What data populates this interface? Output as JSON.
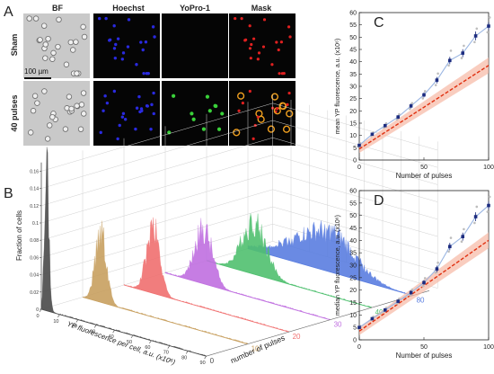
{
  "panel_a": {
    "label": "A",
    "columns": [
      "BF",
      "Hoechst",
      "YoPro-1",
      "Mask"
    ],
    "rows": [
      "Sham",
      "40 pulses"
    ],
    "scale_bar": "100 µm",
    "colors": {
      "bf": "#c9c9c9",
      "hoechst": "#2a2ae0",
      "yopro": "#3ad23a",
      "mask_red": "#e02020",
      "mask_orange": "#f0a020",
      "dark": "#050505"
    }
  },
  "panel_b": {
    "label": "B",
    "ylabel": "Fraction of cells",
    "xlabel": "YP fluorescence per cell, a.u. (x10⁶)",
    "zlabel": "number of pulses"
  },
  "panel_c": {
    "label": "C"
  },
  "panel_d": {
    "label": "D"
  },
  "chart_data": [
    {
      "type": "area",
      "panel": "B",
      "ylabel": "Fraction of cells",
      "xlabel": "YP fluorescence per cell, a.u. (x10⁶)",
      "zlabel": "number of pulses",
      "x_ticks": [
        0,
        10,
        20,
        30,
        40,
        50,
        60,
        70,
        80,
        90
      ],
      "y_ticks": [
        0,
        0.02,
        0.04,
        0.06,
        0.08,
        0.1,
        0.12,
        0.14,
        0.16
      ],
      "z_ticks": [
        0,
        10,
        20,
        30,
        40,
        80
      ],
      "series": [
        {
          "pulses": 0,
          "color": "#4a4a4a",
          "peak_x": 3,
          "peak_fraction": 0.16,
          "spread": 1.2
        },
        {
          "pulses": 10,
          "color": "#c8a060",
          "peak_x": 10,
          "peak_fraction": 0.085,
          "spread": 3.0
        },
        {
          "pulses": 20,
          "color": "#f07070",
          "peak_x": 16,
          "peak_fraction": 0.075,
          "spread": 3.6
        },
        {
          "pulses": 30,
          "color": "#c070e0",
          "peak_x": 21,
          "peak_fraction": 0.062,
          "spread": 4.8
        },
        {
          "pulses": 40,
          "color": "#50c070",
          "peak_x": 26,
          "peak_fraction": 0.06,
          "spread": 6.5
        },
        {
          "pulses": 80,
          "color": "#5a7ee0",
          "peak_x": 45,
          "peak_fraction": 0.045,
          "spread": 13
        }
      ]
    },
    {
      "type": "scatter",
      "panel": "C",
      "xlabel": "Number of pulses",
      "ylabel": "mean YP fluorescence, a.u. (x10⁶)",
      "xlim": [
        0,
        100
      ],
      "ylim": [
        0,
        60
      ],
      "x_ticks": [
        0,
        50,
        100
      ],
      "y_ticks": [
        0,
        5,
        10,
        15,
        20,
        25,
        30,
        35,
        40,
        45,
        50,
        55,
        60
      ],
      "x": [
        0,
        10,
        20,
        30,
        40,
        50,
        60,
        70,
        80,
        90,
        100
      ],
      "mean": [
        6,
        10.5,
        14,
        17.5,
        22,
        26.5,
        32.5,
        40.5,
        43.5,
        50.5,
        54.5
      ],
      "error": [
        0.5,
        0.6,
        0.7,
        0.8,
        0.9,
        1.0,
        1.3,
        1.5,
        1.6,
        1.8,
        1.6
      ],
      "replicates": [
        [
          5.5,
          6.2,
          6.8
        ],
        [
          9.8,
          10.7,
          11.2
        ],
        [
          13.2,
          14.1,
          14.9
        ],
        [
          16.5,
          17.8,
          18.6
        ],
        [
          20.8,
          22.3,
          23.1
        ],
        [
          25.1,
          26.8,
          28.0
        ],
        [
          30.5,
          33.0,
          35.2
        ],
        [
          38.5,
          41.0,
          44.5
        ],
        [
          41.5,
          44.0,
          46.5
        ],
        [
          48.0,
          51.0,
          53.5
        ],
        [
          52.0,
          55.5,
          58.0
        ]
      ],
      "fit_line": {
        "x": [
          0,
          100
        ],
        "y": [
          4.5,
          38.5
        ],
        "band": 1.6,
        "color": "#e03010"
      }
    },
    {
      "type": "scatter",
      "panel": "D",
      "xlabel": "Number of pulses",
      "ylabel": "median YP fluorescence, a.u. (x10⁶)",
      "xlim": [
        0,
        100
      ],
      "ylim": [
        0,
        60
      ],
      "x_ticks": [
        0,
        50,
        100
      ],
      "y_ticks": [
        0,
        5,
        10,
        15,
        20,
        25,
        30,
        35,
        40,
        45,
        50,
        55,
        60
      ],
      "x": [
        0,
        10,
        20,
        30,
        40,
        50,
        60,
        70,
        80,
        90,
        100
      ],
      "median": [
        5,
        8.5,
        12,
        15.5,
        19,
        23,
        28.5,
        37.5,
        41.5,
        49.5,
        54
      ],
      "error": [
        0.5,
        0.6,
        0.7,
        0.8,
        0.9,
        1.0,
        1.3,
        1.5,
        1.6,
        1.8,
        1.6
      ],
      "replicates": [
        [
          4.6,
          5.2,
          5.6
        ],
        [
          8.0,
          8.7,
          9.3
        ],
        [
          11.4,
          12.3,
          12.9
        ],
        [
          14.6,
          15.8,
          16.5
        ],
        [
          18.0,
          19.3,
          20.2
        ],
        [
          21.6,
          23.5,
          24.8
        ],
        [
          27.0,
          29.0,
          31.0
        ],
        [
          35.5,
          38.0,
          41.0
        ],
        [
          39.5,
          42.0,
          44.5
        ],
        [
          47.0,
          50.0,
          53.5
        ],
        [
          51.5,
          54.5,
          57.5
        ]
      ],
      "fit_line": {
        "x": [
          0,
          100
        ],
        "y": [
          3.5,
          40
        ],
        "band": 1.6,
        "color": "#e03010"
      }
    }
  ]
}
